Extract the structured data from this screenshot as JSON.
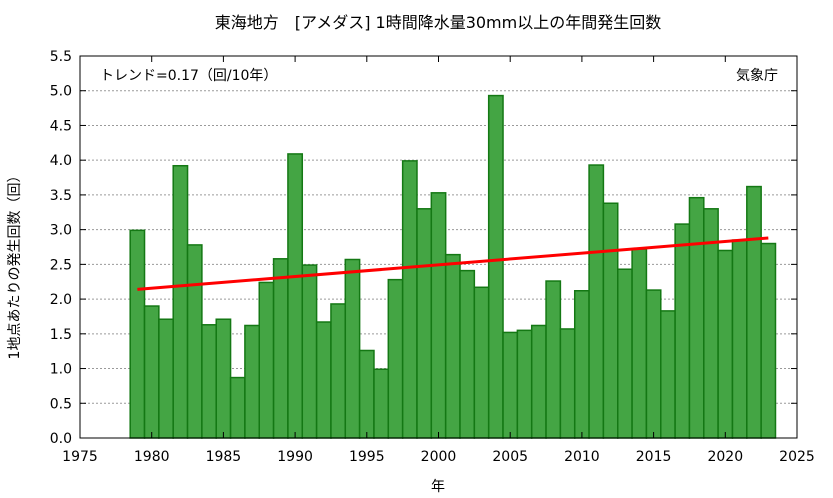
{
  "chart_data": {
    "type": "bar",
    "title": "東海地方　[アメダス] 1時間降水量30mm以上の年間発生回数",
    "xlabel": "年",
    "ylabel": "1地点あたりの発生回数（回）",
    "annotation_trend": "トレンド=0.17（回/10年）",
    "annotation_source": "気象庁",
    "xlim": [
      1975,
      2025
    ],
    "ylim": [
      0,
      5.5
    ],
    "x_ticks": [
      1975,
      1980,
      1985,
      1990,
      1995,
      2000,
      2005,
      2010,
      2015,
      2020,
      2025
    ],
    "y_ticks": [
      0,
      0.5,
      1.0,
      1.5,
      2.0,
      2.5,
      3.0,
      3.5,
      4.0,
      4.5,
      5.0,
      5.5
    ],
    "y_tick_labels": [
      "0.0",
      "0.5",
      "1.0",
      "1.5",
      "2.0",
      "2.5",
      "3.0",
      "3.5",
      "4.0",
      "4.5",
      "5.0",
      "5.5"
    ],
    "grid": "horizontal dashed",
    "colors": {
      "bar_fill": "#44a544",
      "bar_edge": "#147814",
      "trend": "#ff0000"
    },
    "x": [
      1979,
      1980,
      1981,
      1982,
      1983,
      1984,
      1985,
      1986,
      1987,
      1988,
      1989,
      1990,
      1991,
      1992,
      1993,
      1994,
      1995,
      1996,
      1997,
      1998,
      1999,
      2000,
      2001,
      2002,
      2003,
      2004,
      2005,
      2006,
      2007,
      2008,
      2009,
      2010,
      2011,
      2012,
      2013,
      2014,
      2015,
      2016,
      2017,
      2018,
      2019,
      2020,
      2021,
      2022,
      2023
    ],
    "values": [
      2.99,
      1.9,
      1.71,
      3.92,
      2.78,
      1.63,
      1.71,
      0.87,
      1.62,
      2.24,
      2.58,
      4.09,
      2.49,
      1.67,
      1.93,
      2.57,
      1.26,
      0.99,
      2.28,
      3.99,
      3.3,
      3.53,
      2.64,
      2.41,
      2.17,
      4.93,
      1.52,
      1.55,
      1.62,
      2.26,
      1.57,
      2.12,
      3.93,
      3.38,
      2.43,
      2.72,
      2.13,
      1.83,
      3.08,
      3.46,
      3.3,
      2.7,
      2.85,
      3.62,
      2.8
    ],
    "trend": {
      "x": [
        1979,
        2023
      ],
      "y": [
        2.14,
        2.88
      ]
    }
  }
}
